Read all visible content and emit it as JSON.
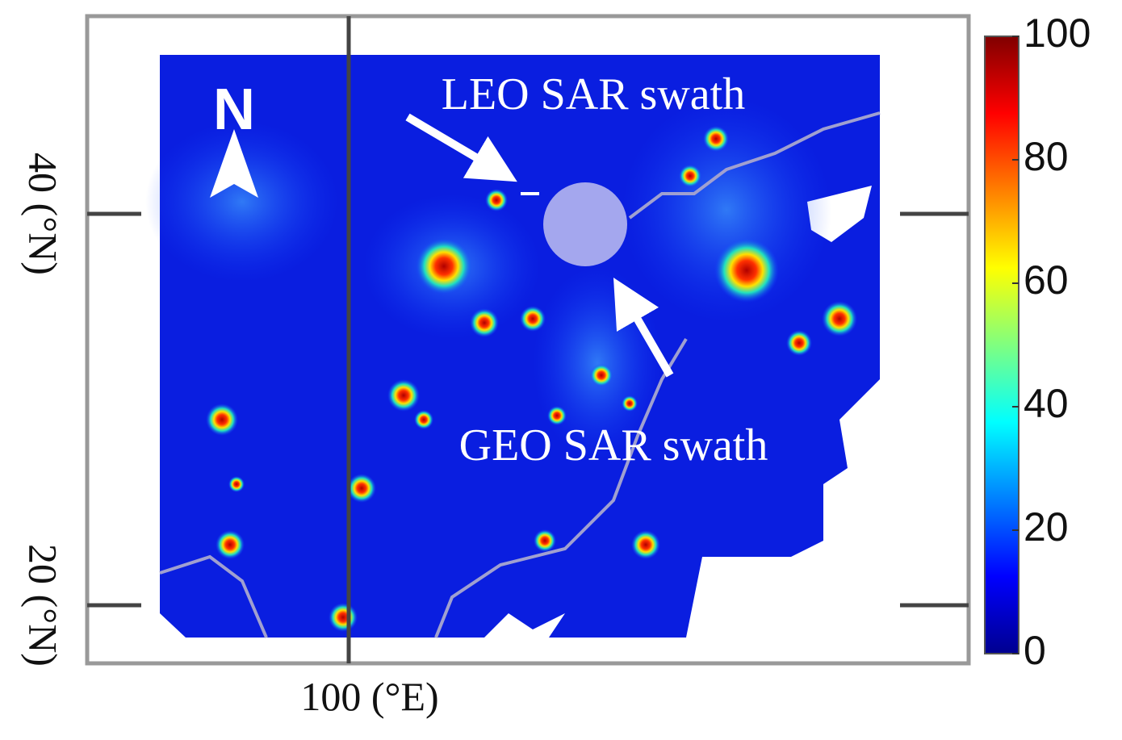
{
  "map": {
    "north_label": "N",
    "leo_label": "LEO SAR swath",
    "geo_label": "GEO SAR swath",
    "lat_labels": [
      "40 (°N)",
      "20 (°N)"
    ],
    "lon_labels": [
      "100 (°E)"
    ]
  },
  "colorbar": {
    "range": [
      0,
      100
    ],
    "ticks": [
      0,
      20,
      40,
      60,
      80,
      100
    ]
  }
}
